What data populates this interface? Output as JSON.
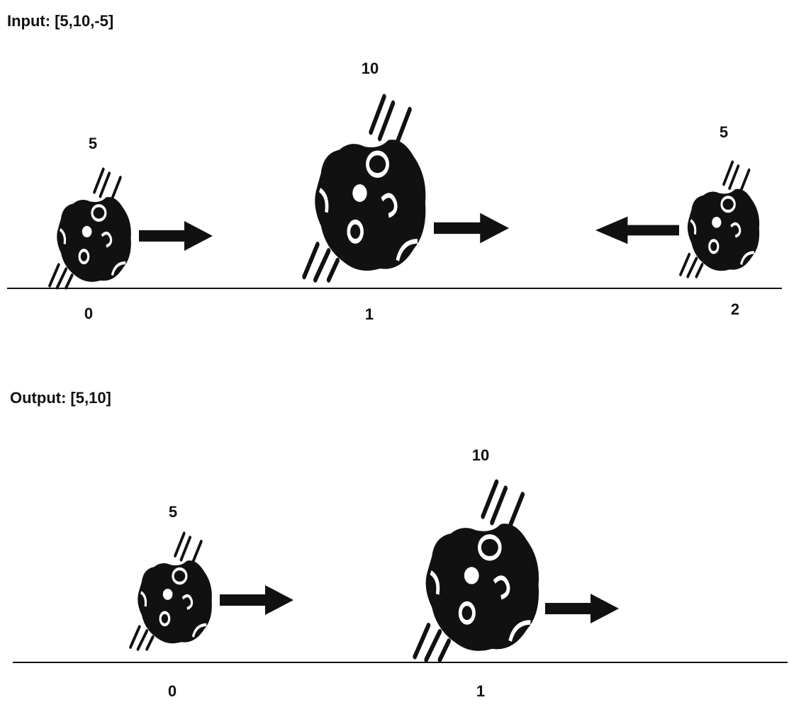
{
  "colors": {
    "ink": "#111111",
    "background": "#ffffff"
  },
  "input": {
    "label": "Input:",
    "value": "[5,10,-5]",
    "asteroids": [
      {
        "size_label": "5",
        "index_label": "0",
        "direction": "right"
      },
      {
        "size_label": "10",
        "index_label": "1",
        "direction": "right"
      },
      {
        "size_label": "5",
        "index_label": "2",
        "direction": "left"
      }
    ]
  },
  "output": {
    "label": "Output:",
    "value": "[5,10]",
    "asteroids": [
      {
        "size_label": "5",
        "index_label": "0",
        "direction": "right"
      },
      {
        "size_label": "10",
        "index_label": "1",
        "direction": "right"
      }
    ]
  },
  "icons": {
    "asteroid": "asteroid-icon",
    "arrow_right": "arrow-right-icon",
    "arrow_left": "arrow-left-icon"
  }
}
